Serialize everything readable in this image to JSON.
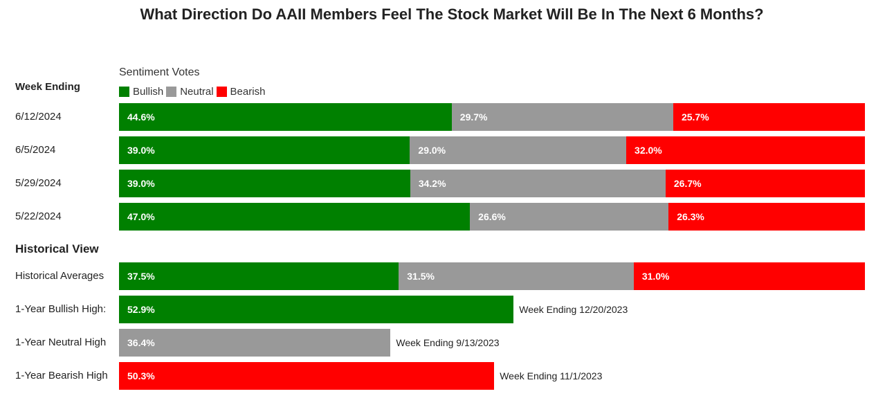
{
  "chart_data": {
    "type": "bar",
    "title": "What Direction Do AAII Members Feel The Stock Market Will Be In The Next 6 Months?",
    "legend_title": "Sentiment Votes",
    "legend_placement": "top-left",
    "weekly_header": "Week Ending",
    "historical_header": "Historical View",
    "series": [
      {
        "name": "Bullish",
        "color": "#008000"
      },
      {
        "name": "Neutral",
        "color": "#999999"
      },
      {
        "name": "Bearish",
        "color": "#ff0000"
      }
    ],
    "weekly": [
      {
        "label": "6/12/2024",
        "values": [
          44.6,
          29.7,
          25.7
        ],
        "texts": [
          "44.6%",
          "29.7%",
          "25.7%"
        ]
      },
      {
        "label": "6/5/2024",
        "values": [
          39.0,
          29.0,
          32.0
        ],
        "texts": [
          "39.0%",
          "29.0%",
          "32.0%"
        ]
      },
      {
        "label": "5/29/2024",
        "values": [
          39.0,
          34.2,
          26.7
        ],
        "texts": [
          "39.0%",
          "34.2%",
          "26.7%"
        ]
      },
      {
        "label": "5/22/2024",
        "values": [
          47.0,
          26.6,
          26.3
        ],
        "texts": [
          "47.0%",
          "26.6%",
          "26.3%"
        ]
      }
    ],
    "historical_average": {
      "label": "Historical Averages",
      "values": [
        37.5,
        31.5,
        31.0
      ],
      "texts": [
        "37.5%",
        "31.5%",
        "31.0%"
      ]
    },
    "highs": [
      {
        "label": "1-Year Bullish High:",
        "series": 0,
        "value": 52.9,
        "text": "52.9%",
        "note": "Week Ending 12/20/2023"
      },
      {
        "label": "1-Year Neutral High",
        "series": 1,
        "value": 36.4,
        "text": "36.4%",
        "note": "Week Ending 9/13/2023"
      },
      {
        "label": "1-Year Bearish High",
        "series": 2,
        "value": 50.3,
        "text": "50.3%",
        "note": "Week Ending 11/1/2023"
      }
    ]
  }
}
